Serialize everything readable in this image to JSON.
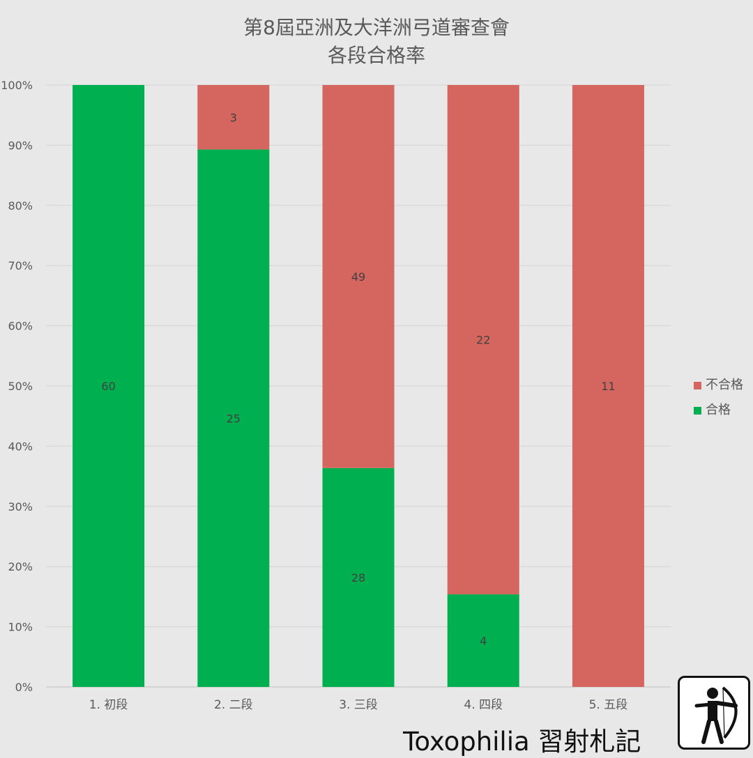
{
  "chart_data": {
    "type": "bar",
    "stacked": true,
    "percent_stacked": true,
    "title": "第8屆亞洲及大洋洲弓道審查會",
    "subtitle": "各段合格率",
    "categories": [
      "1. 初段",
      "2. 二段",
      "3. 三段",
      "4. 四段",
      "5. 五段"
    ],
    "series": [
      {
        "name": "合格",
        "values": [
          60,
          25,
          28,
          4,
          0
        ],
        "color": "#00b050"
      },
      {
        "name": "不合格",
        "values": [
          0,
          3,
          49,
          22,
          11
        ],
        "color": "#d4665f"
      }
    ],
    "y_ticks": [
      "0%",
      "10%",
      "20%",
      "30%",
      "40%",
      "50%",
      "60%",
      "70%",
      "80%",
      "90%",
      "100%"
    ],
    "ylim": [
      0,
      100
    ],
    "grid": true,
    "legend_position": "right"
  },
  "watermark": "Toxophilia 習射札記",
  "logo_icon": "archer-icon"
}
